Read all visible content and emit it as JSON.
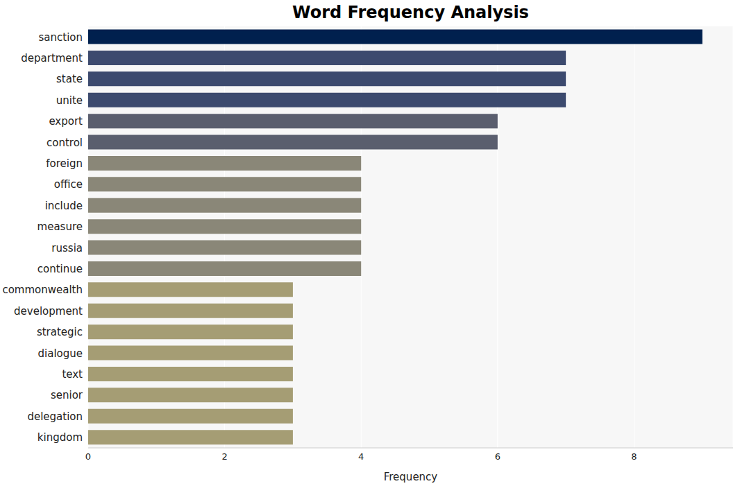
{
  "chart_data": {
    "type": "bar",
    "title": "Word Frequency Analysis",
    "orientation": "horizontal",
    "x_label": "Frequency",
    "categories": [
      "sanction",
      "department",
      "state",
      "unite",
      "export",
      "control",
      "foreign",
      "office",
      "include",
      "measure",
      "russia",
      "continue",
      "commonwealth",
      "development",
      "strategic",
      "dialogue",
      "text",
      "senior",
      "delegation",
      "kingdom"
    ],
    "values": [
      9,
      7,
      7,
      7,
      6,
      6,
      4,
      4,
      4,
      4,
      4,
      4,
      3,
      3,
      3,
      3,
      3,
      3,
      3,
      3
    ],
    "colors": [
      "#00204e",
      "#3c4a6e",
      "#3c4a6e",
      "#3c4a6e",
      "#5a5e6e",
      "#5a5e6e",
      "#8a8778",
      "#8a8778",
      "#8a8778",
      "#8a8778",
      "#8a8778",
      "#8a8778",
      "#a59d74",
      "#a59d74",
      "#a59d74",
      "#a59d74",
      "#a59d74",
      "#a59d74",
      "#a59d74",
      "#a59d74"
    ],
    "xlim": [
      0,
      9.45
    ],
    "xticks": [
      0,
      2,
      4,
      6,
      8
    ],
    "grid": true
  }
}
